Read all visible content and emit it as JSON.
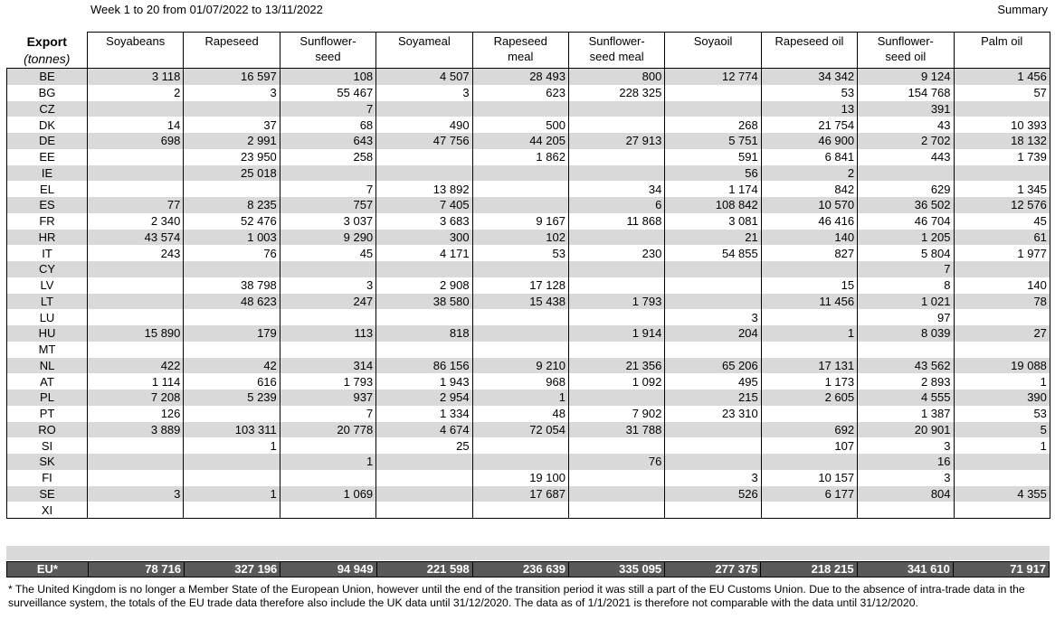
{
  "period": "Week 1 to 20 from 01/07/2022 to 13/11/2022",
  "summary": "Summary",
  "corner": {
    "title": "Export",
    "unit": "(tonnes)"
  },
  "columns": [
    [
      "Soyabeans"
    ],
    [
      "Rapeseed"
    ],
    [
      "Sunflower-",
      "seed"
    ],
    [
      "Soyameal"
    ],
    [
      "Rapeseed",
      "meal"
    ],
    [
      "Sunflower-",
      "seed meal"
    ],
    [
      "Soyaoil"
    ],
    [
      "Rapeseed oil"
    ],
    [
      "Sunflower-",
      "seed oil"
    ],
    [
      "Palm oil"
    ]
  ],
  "rows": [
    [
      "BE",
      "3 118",
      "16 597",
      "108",
      "4 507",
      "28 493",
      "800",
      "12 774",
      "34 342",
      "9 124",
      "1 456"
    ],
    [
      "BG",
      "2",
      "3",
      "55 467",
      "3",
      "623",
      "228 325",
      "",
      "53",
      "154 768",
      "57"
    ],
    [
      "CZ",
      "",
      "",
      "7",
      "",
      "",
      "",
      "",
      "13",
      "391",
      ""
    ],
    [
      "DK",
      "14",
      "37",
      "68",
      "490",
      "500",
      "",
      "268",
      "21 754",
      "43",
      "10 393"
    ],
    [
      "DE",
      "698",
      "2 991",
      "643",
      "47 756",
      "44 205",
      "27 913",
      "5 751",
      "46 900",
      "2 702",
      "18 132"
    ],
    [
      "EE",
      "",
      "23 950",
      "258",
      "",
      "1 862",
      "",
      "591",
      "6 841",
      "443",
      "1 739"
    ],
    [
      "IE",
      "",
      "25 018",
      "",
      "",
      "",
      "",
      "56",
      "2",
      "",
      ""
    ],
    [
      "EL",
      "",
      "",
      "7",
      "13 892",
      "",
      "34",
      "1 174",
      "842",
      "629",
      "1 345"
    ],
    [
      "ES",
      "77",
      "8 235",
      "757",
      "7 405",
      "",
      "6",
      "108 842",
      "10 570",
      "36 502",
      "12 576"
    ],
    [
      "FR",
      "2 340",
      "52 476",
      "3 037",
      "3 683",
      "9 167",
      "11 868",
      "3 081",
      "46 416",
      "46 704",
      "45"
    ],
    [
      "HR",
      "43 574",
      "1 003",
      "9 290",
      "300",
      "102",
      "",
      "21",
      "140",
      "1 205",
      "61"
    ],
    [
      "IT",
      "243",
      "76",
      "45",
      "4 171",
      "53",
      "230",
      "54 855",
      "827",
      "5 804",
      "1 977"
    ],
    [
      "CY",
      "",
      "",
      "",
      "",
      "",
      "",
      "",
      "",
      "7",
      ""
    ],
    [
      "LV",
      "",
      "38 798",
      "3",
      "2 908",
      "17 128",
      "",
      "",
      "15",
      "8",
      "140"
    ],
    [
      "LT",
      "",
      "48 623",
      "247",
      "38 580",
      "15 438",
      "1 793",
      "",
      "11 456",
      "1 021",
      "78"
    ],
    [
      "LU",
      "",
      "",
      "",
      "",
      "",
      "",
      "3",
      "",
      "97",
      ""
    ],
    [
      "HU",
      "15 890",
      "179",
      "113",
      "818",
      "",
      "1 914",
      "204",
      "1",
      "8 039",
      "27"
    ],
    [
      "MT",
      "",
      "",
      "",
      "",
      "",
      "",
      "",
      "",
      "",
      ""
    ],
    [
      "NL",
      "422",
      "42",
      "314",
      "86 156",
      "9 210",
      "21 356",
      "65 206",
      "17 131",
      "43 562",
      "19 088"
    ],
    [
      "AT",
      "1 114",
      "616",
      "1 793",
      "1 943",
      "968",
      "1 092",
      "495",
      "1 173",
      "2 893",
      "1"
    ],
    [
      "PL",
      "7 208",
      "5 239",
      "937",
      "2 954",
      "1",
      "",
      "215",
      "2 605",
      "4 555",
      "390"
    ],
    [
      "PT",
      "126",
      "",
      "7",
      "1 334",
      "48",
      "7 902",
      "23 310",
      "",
      "1 387",
      "53"
    ],
    [
      "RO",
      "3 889",
      "103 311",
      "20 778",
      "4 674",
      "72 054",
      "31 788",
      "",
      "692",
      "20 901",
      "5"
    ],
    [
      "SI",
      "",
      "1",
      "",
      "25",
      "",
      "",
      "",
      "107",
      "3",
      "1"
    ],
    [
      "SK",
      "",
      "",
      "1",
      "",
      "",
      "76",
      "",
      "",
      "16",
      ""
    ],
    [
      "FI",
      "",
      "",
      "",
      "",
      "19 100",
      "",
      "3",
      "10 157",
      "3",
      ""
    ],
    [
      "SE",
      "3",
      "1",
      "1 069",
      "",
      "17 687",
      "",
      "526",
      "6 177",
      "804",
      "4 355"
    ],
    [
      "XI",
      "",
      "",
      "",
      "",
      "",
      "",
      "",
      "",
      "",
      ""
    ]
  ],
  "totals": [
    "EU*",
    "78 716",
    "327 196",
    "94 949",
    "221 598",
    "236 639",
    "335 095",
    "277 375",
    "218 215",
    "341 610",
    "71 917"
  ],
  "footnote": "* The United Kingdom is no longer a Member State of the European Union, however until the end of the transition period it was still a part of the EU Customs Union. Due to the absence of intra-trade data in the surveillance system, the totals of the EU trade data  therefore also include the UK data until 31/12/2020. The data as of 1/1/2021 is therefore not comparable with the data until 31/12/2020."
}
